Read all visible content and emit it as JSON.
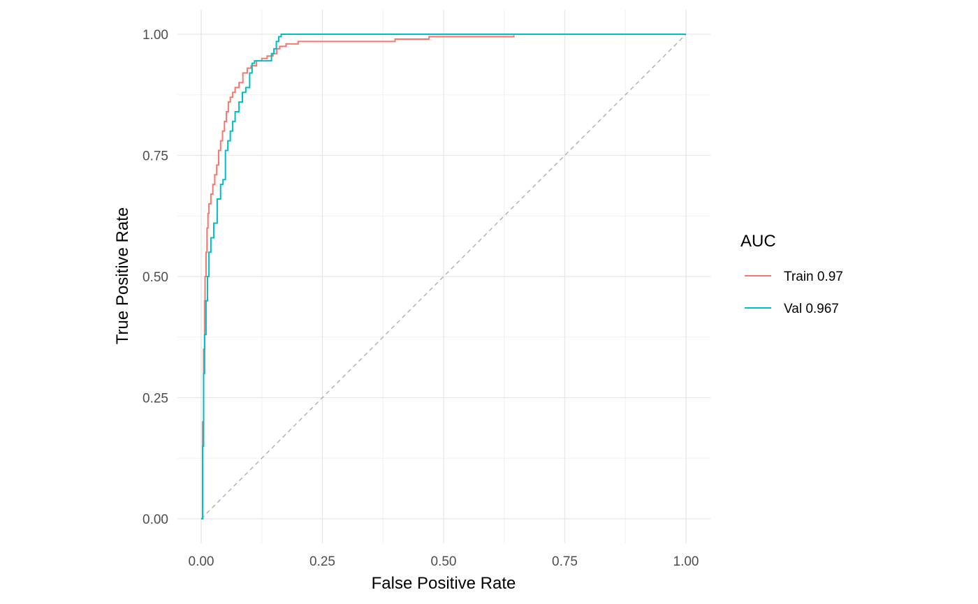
{
  "chart_data": {
    "type": "line",
    "title": "",
    "xlabel": "False Positive Rate",
    "ylabel": "True Positive Rate",
    "xlim": [
      -0.05,
      1.05
    ],
    "ylim": [
      -0.05,
      1.05
    ],
    "x_ticks": [
      0,
      0.25,
      0.5,
      0.75,
      1
    ],
    "x_tick_labels": [
      "0.00",
      "0.25",
      "0.50",
      "0.75",
      "1.00"
    ],
    "y_ticks": [
      0,
      0.25,
      0.5,
      0.75,
      1
    ],
    "y_tick_labels": [
      "0.00",
      "0.25",
      "0.50",
      "0.75",
      "1.00"
    ],
    "grid": true,
    "legend": {
      "title": "AUC",
      "position": "right"
    },
    "reference_line": {
      "x": [
        0,
        1
      ],
      "y": [
        0,
        1
      ],
      "color": "#b3b3b3",
      "style": "dashed"
    },
    "series": [
      {
        "name": "Train 0.97",
        "color": "#F8766D",
        "x": [
          0,
          0.003,
          0.005,
          0.007,
          0.008,
          0.01,
          0.012,
          0.014,
          0.016,
          0.02,
          0.024,
          0.028,
          0.032,
          0.036,
          0.04,
          0.044,
          0.048,
          0.052,
          0.056,
          0.06,
          0.065,
          0.07,
          0.078,
          0.086,
          0.095,
          0.103,
          0.114,
          0.125,
          0.136,
          0.148,
          0.156,
          0.162,
          0.175,
          0.2,
          0.25,
          0.3,
          0.35,
          0.4,
          0.47,
          0.55,
          0.645
        ],
        "y": [
          0,
          0.2,
          0.35,
          0.45,
          0.5,
          0.55,
          0.6,
          0.63,
          0.65,
          0.67,
          0.69,
          0.71,
          0.73,
          0.76,
          0.78,
          0.8,
          0.82,
          0.84,
          0.86,
          0.87,
          0.88,
          0.89,
          0.9,
          0.92,
          0.93,
          0.935,
          0.945,
          0.95,
          0.955,
          0.96,
          0.97,
          0.975,
          0.98,
          0.985,
          0.985,
          0.985,
          0.985,
          0.99,
          0.995,
          0.995,
          0.998
        ]
      },
      {
        "name": "Val 0.967",
        "color": "#00BFC4",
        "x": [
          0,
          0.003,
          0.005,
          0.007,
          0.01,
          0.013,
          0.016,
          0.02,
          0.026,
          0.033,
          0.04,
          0.045,
          0.05,
          0.055,
          0.06,
          0.065,
          0.07,
          0.078,
          0.085,
          0.092,
          0.1,
          0.105,
          0.11,
          0.14,
          0.145,
          0.15,
          0.155,
          0.16,
          0.165,
          0.2,
          0.4,
          0.6,
          0.8,
          1
        ],
        "y": [
          0,
          0.15,
          0.3,
          0.38,
          0.45,
          0.5,
          0.55,
          0.58,
          0.61,
          0.66,
          0.69,
          0.7,
          0.76,
          0.78,
          0.8,
          0.82,
          0.84,
          0.86,
          0.88,
          0.89,
          0.92,
          0.94,
          0.945,
          0.945,
          0.96,
          0.97,
          0.985,
          0.995,
          1,
          1,
          1,
          1,
          1,
          1
        ]
      }
    ]
  }
}
